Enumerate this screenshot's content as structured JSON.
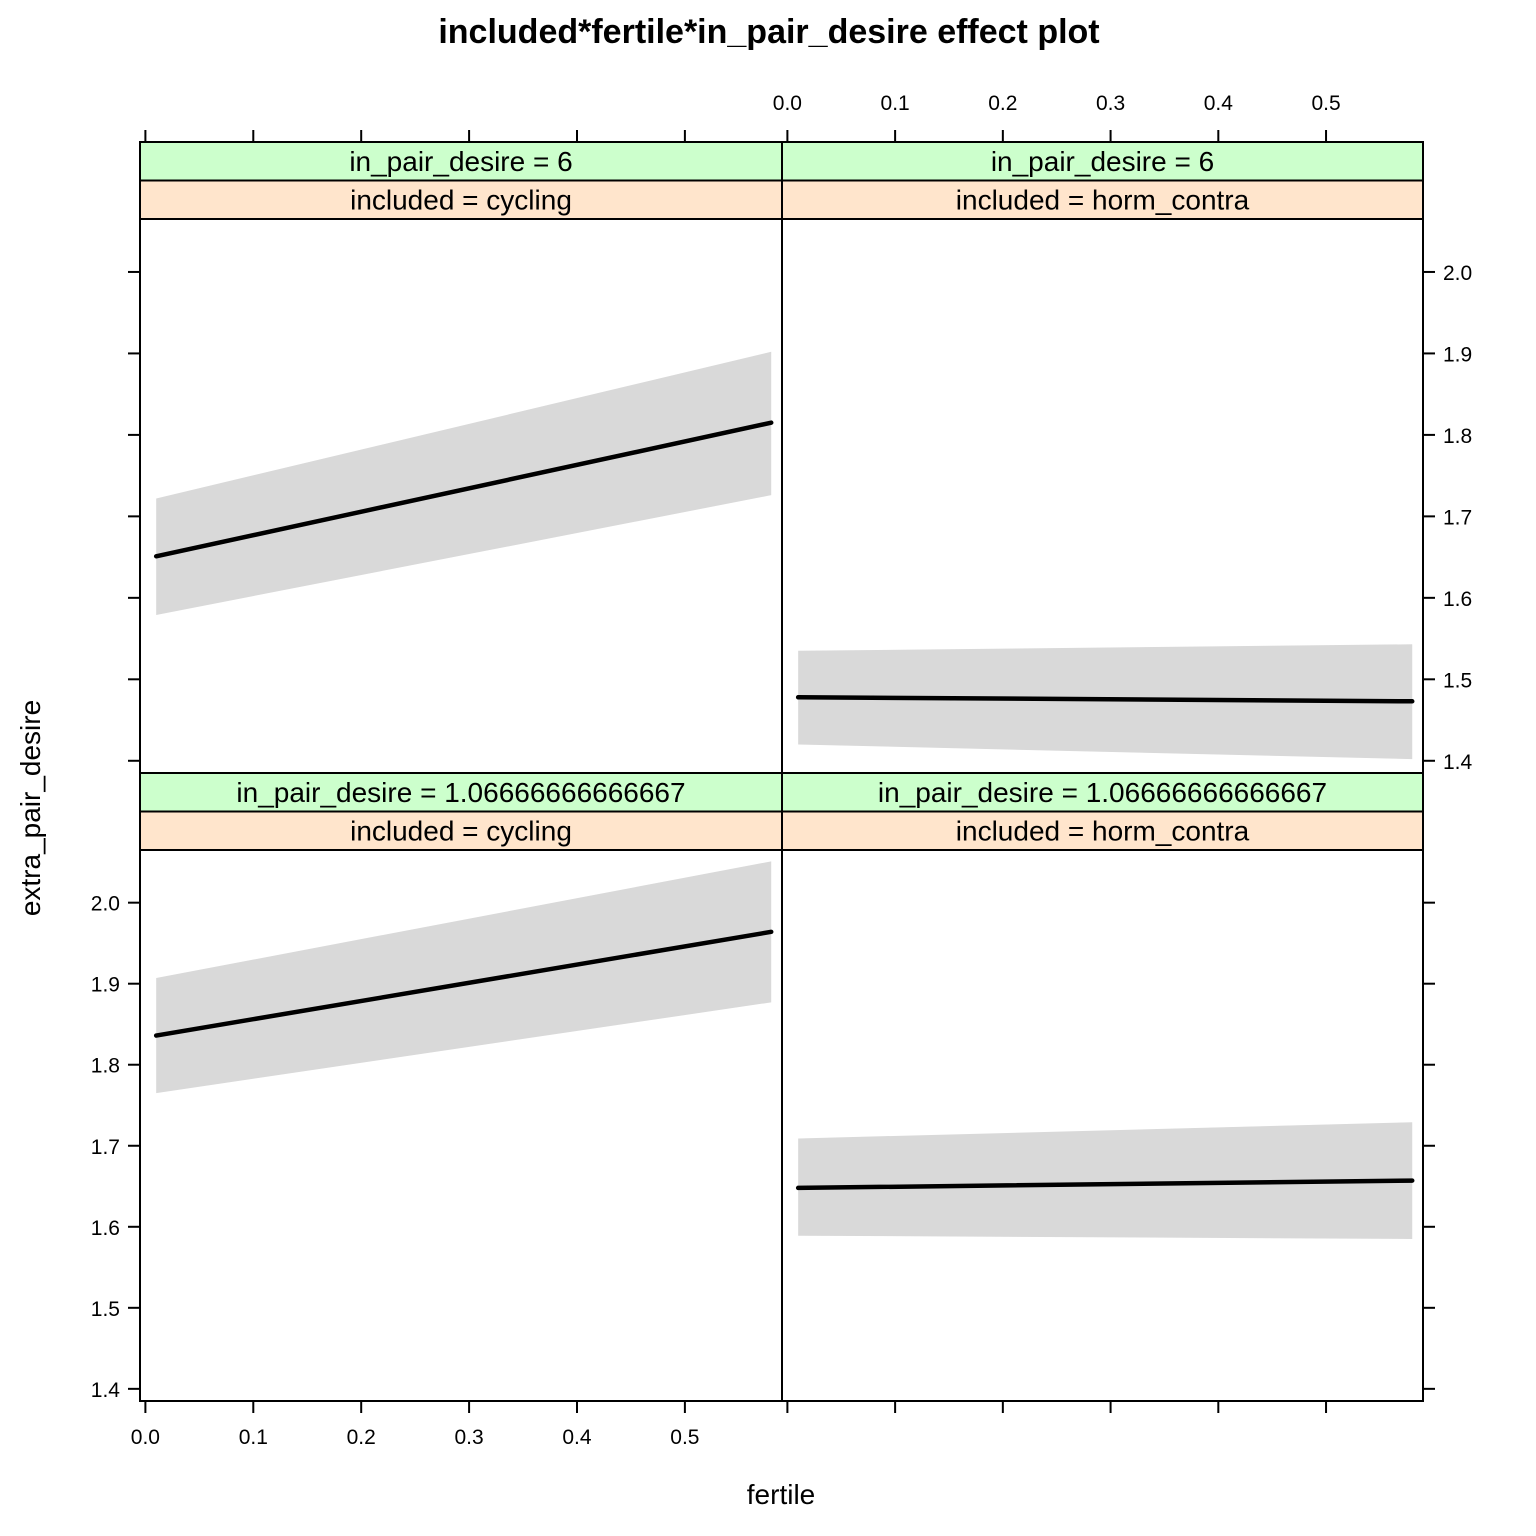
{
  "chart_data": {
    "type": "line",
    "title": "included*fertile*in_pair_desire effect plot",
    "xlabel": "fertile",
    "ylabel": "extra_pair_desire",
    "xlim": [
      -0.005,
      0.59
    ],
    "ylim": [
      1.385,
      2.065
    ],
    "x_ticks": [
      0.0,
      0.1,
      0.2,
      0.3,
      0.4,
      0.5
    ],
    "x_tick_labels": [
      "0.0",
      "0.1",
      "0.2",
      "0.3",
      "0.4",
      "0.5"
    ],
    "y_ticks": [
      1.4,
      1.5,
      1.6,
      1.7,
      1.8,
      1.9,
      2.0
    ],
    "y_tick_labels": [
      "1.4",
      "1.5",
      "1.6",
      "1.7",
      "1.8",
      "1.9",
      "2.0"
    ],
    "grid": false,
    "band_color": "#d9d9d9",
    "line_color": "#000000",
    "strip_colors": {
      "in_pair_desire": "#ccffcc",
      "included": "#ffe5cc"
    },
    "panels": [
      {
        "row": "top",
        "col": "left",
        "strip_in_pair_desire": "in_pair_desire = 6",
        "strip_included": "included = cycling",
        "x": [
          0.01,
          0.58
        ],
        "fit": [
          1.651,
          1.815
        ],
        "lower": [
          1.579,
          1.726
        ],
        "upper": [
          1.722,
          1.902
        ]
      },
      {
        "row": "top",
        "col": "right",
        "strip_in_pair_desire": "in_pair_desire = 6",
        "strip_included": "included = horm_contra",
        "x": [
          0.01,
          0.58
        ],
        "fit": [
          1.478,
          1.473
        ],
        "lower": [
          1.42,
          1.402
        ],
        "upper": [
          1.535,
          1.543
        ]
      },
      {
        "row": "bottom",
        "col": "left",
        "strip_in_pair_desire": "in_pair_desire = 1.06666666666667",
        "strip_included": "included = cycling",
        "x": [
          0.01,
          0.58
        ],
        "fit": [
          1.836,
          1.964
        ],
        "lower": [
          1.765,
          1.877
        ],
        "upper": [
          1.907,
          2.051
        ]
      },
      {
        "row": "bottom",
        "col": "right",
        "strip_in_pair_desire": "in_pair_desire = 1.06666666666667",
        "strip_included": "included = horm_contra",
        "x": [
          0.01,
          0.58
        ],
        "fit": [
          1.648,
          1.657
        ],
        "lower": [
          1.589,
          1.585
        ],
        "upper": [
          1.709,
          1.729
        ]
      }
    ]
  }
}
